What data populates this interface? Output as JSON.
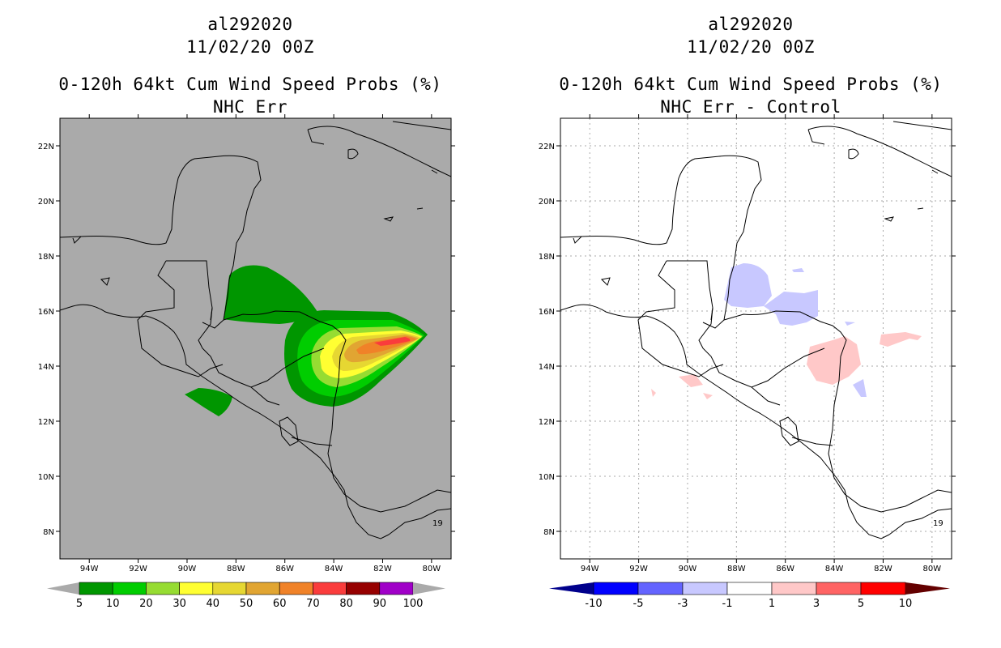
{
  "panels": [
    {
      "storm_id": "al292020",
      "datetime": "11/02/20 00Z",
      "product": "0-120h 64kt Cum Wind Speed Probs (%)",
      "subtitle": "NHC Err",
      "background_color": "#aaaaaa",
      "gridlines": false
    },
    {
      "storm_id": "al292020",
      "datetime": "11/02/20 00Z",
      "product": "0-120h 64kt Cum Wind Speed Probs (%)",
      "subtitle": "NHC Err - Control",
      "background_color": "#ffffff",
      "gridlines": true
    }
  ],
  "axes": {
    "lon_ticks": [
      "94W",
      "92W",
      "90W",
      "88W",
      "86W",
      "84W",
      "82W",
      "80W"
    ],
    "lat_ticks": [
      "22N",
      "20N",
      "18N",
      "16N",
      "14N",
      "12N",
      "10N",
      "8N"
    ],
    "lon_range": [
      -95.2,
      -79.2
    ],
    "lat_range": [
      7,
      23
    ]
  },
  "colorbar_left": {
    "labels": [
      "5",
      "10",
      "20",
      "30",
      "40",
      "50",
      "60",
      "70",
      "80",
      "90",
      "100"
    ],
    "colors": [
      "#009600",
      "#00cd00",
      "#96dc32",
      "#ffff32",
      "#e6d732",
      "#e1a532",
      "#f08228",
      "#fa3c3c",
      "#960000",
      "#a000c8"
    ],
    "extend_color": "#aaaaaa"
  },
  "colorbar_right": {
    "labels": [
      "-10",
      "-5",
      "-3",
      "-1",
      "1",
      "3",
      "5",
      "10"
    ],
    "colors": [
      "#0000c8",
      "#0000ff",
      "#6464ff",
      "#c8c8ff",
      "#ffffff",
      "#ffc8c8",
      "#ff6464",
      "#ff0000",
      "#a00000"
    ],
    "extend_low": "#00008c",
    "extend_high": "#640000"
  },
  "map_annotation": "19",
  "probability_shading": [
    {
      "level": "5",
      "color": "#009600"
    },
    {
      "level": "10",
      "color": "#00cd00"
    },
    {
      "level": "20",
      "color": "#96dc32"
    },
    {
      "level": "30",
      "color": "#ffff32"
    },
    {
      "level": "40",
      "color": "#e6d732"
    },
    {
      "level": "50",
      "color": "#e1a532"
    },
    {
      "level": "60",
      "color": "#f08228"
    },
    {
      "level": "70",
      "color": "#fa3c3c"
    }
  ],
  "difference_shading": [
    {
      "sign": "negative",
      "color": "#c8c8ff"
    },
    {
      "sign": "positive",
      "color": "#ffc8c8"
    }
  ]
}
